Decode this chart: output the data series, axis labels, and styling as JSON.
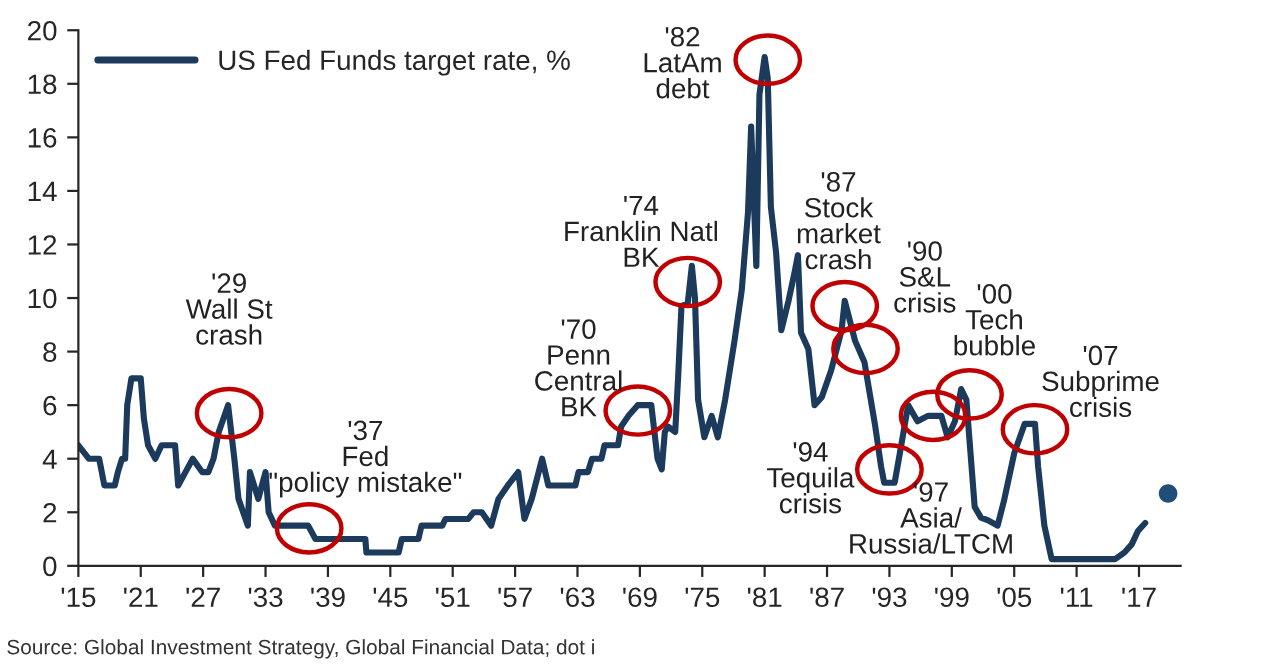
{
  "chart_data": {
    "type": "line",
    "legend": "top left",
    "grid": false,
    "line_style": "solid",
    "xlim": [
      1915,
      2021
    ],
    "ylim": [
      0,
      20
    ],
    "xticks": [
      {
        "value": 1915,
        "label": "'15"
      },
      {
        "value": 1921,
        "label": "'21"
      },
      {
        "value": 1927,
        "label": "'27"
      },
      {
        "value": 1933,
        "label": "'33"
      },
      {
        "value": 1939,
        "label": "'39"
      },
      {
        "value": 1945,
        "label": "'45"
      },
      {
        "value": 1951,
        "label": "'51"
      },
      {
        "value": 1957,
        "label": "'57"
      },
      {
        "value": 1963,
        "label": "'63"
      },
      {
        "value": 1969,
        "label": "'69"
      },
      {
        "value": 1975,
        "label": "'75"
      },
      {
        "value": 1981,
        "label": "'81"
      },
      {
        "value": 1987,
        "label": "'87"
      },
      {
        "value": 1993,
        "label": "'93"
      },
      {
        "value": 1999,
        "label": "'99"
      },
      {
        "value": 2005,
        "label": "'05"
      },
      {
        "value": 2011,
        "label": "'11"
      },
      {
        "value": 2017,
        "label": "'17"
      }
    ],
    "yticks": [
      0,
      2,
      4,
      6,
      8,
      10,
      12,
      14,
      16,
      18,
      20
    ],
    "series": [
      {
        "name": "US Fed Funds target rate, %",
        "color": "#1b3a5c",
        "x": [
          1915,
          1916,
          1917,
          1917.5,
          1918.5,
          1918.8,
          1919.2,
          1919.5,
          1919.7,
          1920.1,
          1921,
          1921.3,
          1921.7,
          1922.4,
          1923,
          1924.3,
          1924.6,
          1925.3,
          1926,
          1926.9,
          1927.5,
          1928,
          1928.5,
          1929.4,
          1929.7,
          1930,
          1930.4,
          1931.3,
          1931.5,
          1932.3,
          1933,
          1933.3,
          1933.9,
          1937.1,
          1937.8,
          1942.6,
          1942.7,
          1945.8,
          1946.1,
          1947.7,
          1948,
          1950,
          1950.3,
          1952.5,
          1953,
          1953.8,
          1954.7,
          1955.4,
          1956.3,
          1957.3,
          1957.9,
          1958.6,
          1959.6,
          1960.2,
          1962.8,
          1963.1,
          1964,
          1964.4,
          1965.3,
          1965.6,
          1966.9,
          1967.2,
          1967.9,
          1968.8,
          1970.1,
          1970.7,
          1971.1,
          1971.4,
          1971.7,
          1972.4,
          1972.7,
          1973,
          1973.6,
          1974,
          1974.3,
          1974.6,
          1975.2,
          1975.9,
          1976.5,
          1977.2,
          1978.1,
          1978.8,
          1979.4,
          1979.7,
          1980.2,
          1980.5,
          1981,
          1981.3,
          1981.6,
          1982.1,
          1982.6,
          1983.3,
          1983.9,
          1984.2,
          1984.5,
          1985.2,
          1985.8,
          1986.5,
          1987.4,
          1988.4,
          1988.7,
          1989.7,
          1990.6,
          1991.6,
          1992.2,
          1992.5,
          1993.5,
          1994,
          1994.8,
          1995.7,
          1996.7,
          1998,
          1998.6,
          1999.3,
          1999.9,
          2000.4,
          2001.2,
          2001.8,
          2002.5,
          2003.4,
          2004,
          2005,
          2006,
          2007,
          2007.3,
          2007.9,
          2008.6,
          2014.7,
          2015.6,
          2016.3,
          2016.9,
          2017.6
        ],
        "values": [
          4.5,
          4,
          4,
          3,
          3,
          3.5,
          4,
          4,
          6,
          7,
          7,
          5.5,
          4.5,
          4,
          4.5,
          4.5,
          3,
          3.5,
          4,
          3.5,
          3.5,
          4,
          5,
          6,
          5,
          4,
          2.5,
          1.5,
          3.5,
          2.5,
          3.5,
          2,
          1.5,
          1.5,
          1,
          1,
          0.5,
          0.5,
          1,
          1,
          1.5,
          1.5,
          1.75,
          1.75,
          2,
          2,
          1.5,
          2.5,
          3,
          3.5,
          1.75,
          2.5,
          4,
          3,
          3,
          3.5,
          3.5,
          4,
          4,
          4.5,
          4.5,
          5.2,
          5.6,
          6,
          6,
          4,
          3.6,
          5,
          5.2,
          5,
          7.2,
          9.7,
          9.8,
          11.2,
          10,
          6.2,
          4.8,
          5.6,
          4.8,
          6.2,
          8.4,
          10.3,
          13.2,
          16.4,
          11.2,
          17.6,
          19,
          18.2,
          13.4,
          11.7,
          8.8,
          9.9,
          11,
          11.6,
          8.7,
          8.1,
          6,
          6.3,
          7.3,
          8.8,
          9.9,
          8.4,
          7.6,
          5.3,
          3.7,
          3.1,
          3.1,
          4.2,
          6,
          5.4,
          5.6,
          5.6,
          4.8,
          5.4,
          6.6,
          6.2,
          2.2,
          1.8,
          1.7,
          1.5,
          2.4,
          4.2,
          5.3,
          5.3,
          3.7,
          1.5,
          0.25,
          0.25,
          0.5,
          0.8,
          1.3,
          1.6
        ]
      },
      {
        "type": "scatter",
        "color": "#1f4e79",
        "x": [
          2019.8
        ],
        "values": [
          2.7
        ]
      }
    ],
    "annotations": [
      {
        "text": "'29\nWall St\ncrash",
        "x": 1929.5,
        "y": 5.7
      },
      {
        "text": "'37\nFed\n\"policy mistake\"",
        "x": 1937.2,
        "y": 1.4
      },
      {
        "text": "'70\nPenn\nCentral\nBK",
        "x": 1968.8,
        "y": 5.8
      },
      {
        "text": "'74\nFranklin Natl\nBK",
        "x": 1973.6,
        "y": 10.6
      },
      {
        "text": "'82\nLatAm\ndebt",
        "x": 1981.3,
        "y": 18.9
      },
      {
        "text": "'87\nStock\nmarket\ncrash",
        "x": 1988.7,
        "y": 9.7
      },
      {
        "text": "'90\nS&L\ncrisis",
        "x": 1990.7,
        "y": 8.1
      },
      {
        "text": "'94\nTequila\ncrisis",
        "x": 1993,
        "y": 3.6
      },
      {
        "text": "'97\nAsia/\nRussia/LTCM",
        "x": 1997.2,
        "y": 5.6
      },
      {
        "text": "'00\nTech\nbubble",
        "x": 2000.7,
        "y": 6.4
      },
      {
        "text": "'07\nSubprime\ncrisis",
        "x": 2007,
        "y": 5.1
      },
      "Source: Global Investment Strategy, Global Financial Data; dot i"
    ]
  }
}
